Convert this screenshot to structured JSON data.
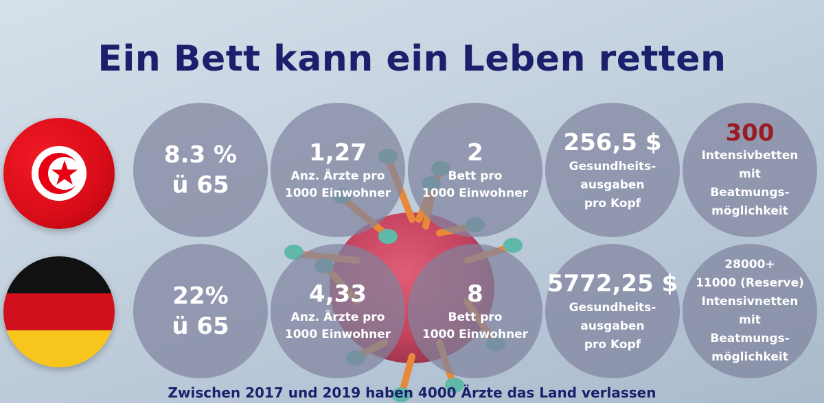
{
  "title": "Ein Bett kann ein Leben retten",
  "tunisia": {
    "c1": {
      "big": "8.3 %",
      "line2": "ü 65"
    },
    "c2": {
      "big": "1,27",
      "l1": "Anz. Ärzte pro",
      "l2": "1000 Einwohner"
    },
    "c3": {
      "big": "2",
      "l1": "Bett pro",
      "l2": "1000 Einwohner"
    },
    "c4": {
      "big": "256,5 $",
      "l1": "Gesundheits-",
      "l2": "ausgaben",
      "l3": "pro Kopf"
    },
    "c5": {
      "big": "300",
      "l1": "Intensivbetten",
      "l2": "mit",
      "l3": "Beatmungs-",
      "l4": "möglichkeit"
    }
  },
  "germany": {
    "c1": {
      "big": "22%",
      "line2": "ü 65"
    },
    "c2": {
      "big": "4,33",
      "l1": "Anz. Ärzte pro",
      "l2": "1000 Einwohner"
    },
    "c3": {
      "big": "8",
      "l1": "Bett pro",
      "l2": "1000 Einwohner"
    },
    "c4": {
      "big": "5772,25 $",
      "l1": "Gesundheits-",
      "l2": "ausgaben",
      "l3": "pro Kopf"
    },
    "c5": {
      "l1": "28000+",
      "l2": "11000 (Reserve)",
      "l3": "Intensivnetten",
      "l4": "mit",
      "l5": "Beatmungs-",
      "l6": "möglichkeit"
    }
  },
  "footer": "Zwischen 2017 und 2019 haben 4000 Ärzte das Land verlassen",
  "colors": {
    "title": "#1c1f6b",
    "highlight": "#9c1b22",
    "circle": "#80849e"
  },
  "icons": [
    "tunisia-flag-icon",
    "germany-flag-icon",
    "virus-illustration"
  ]
}
